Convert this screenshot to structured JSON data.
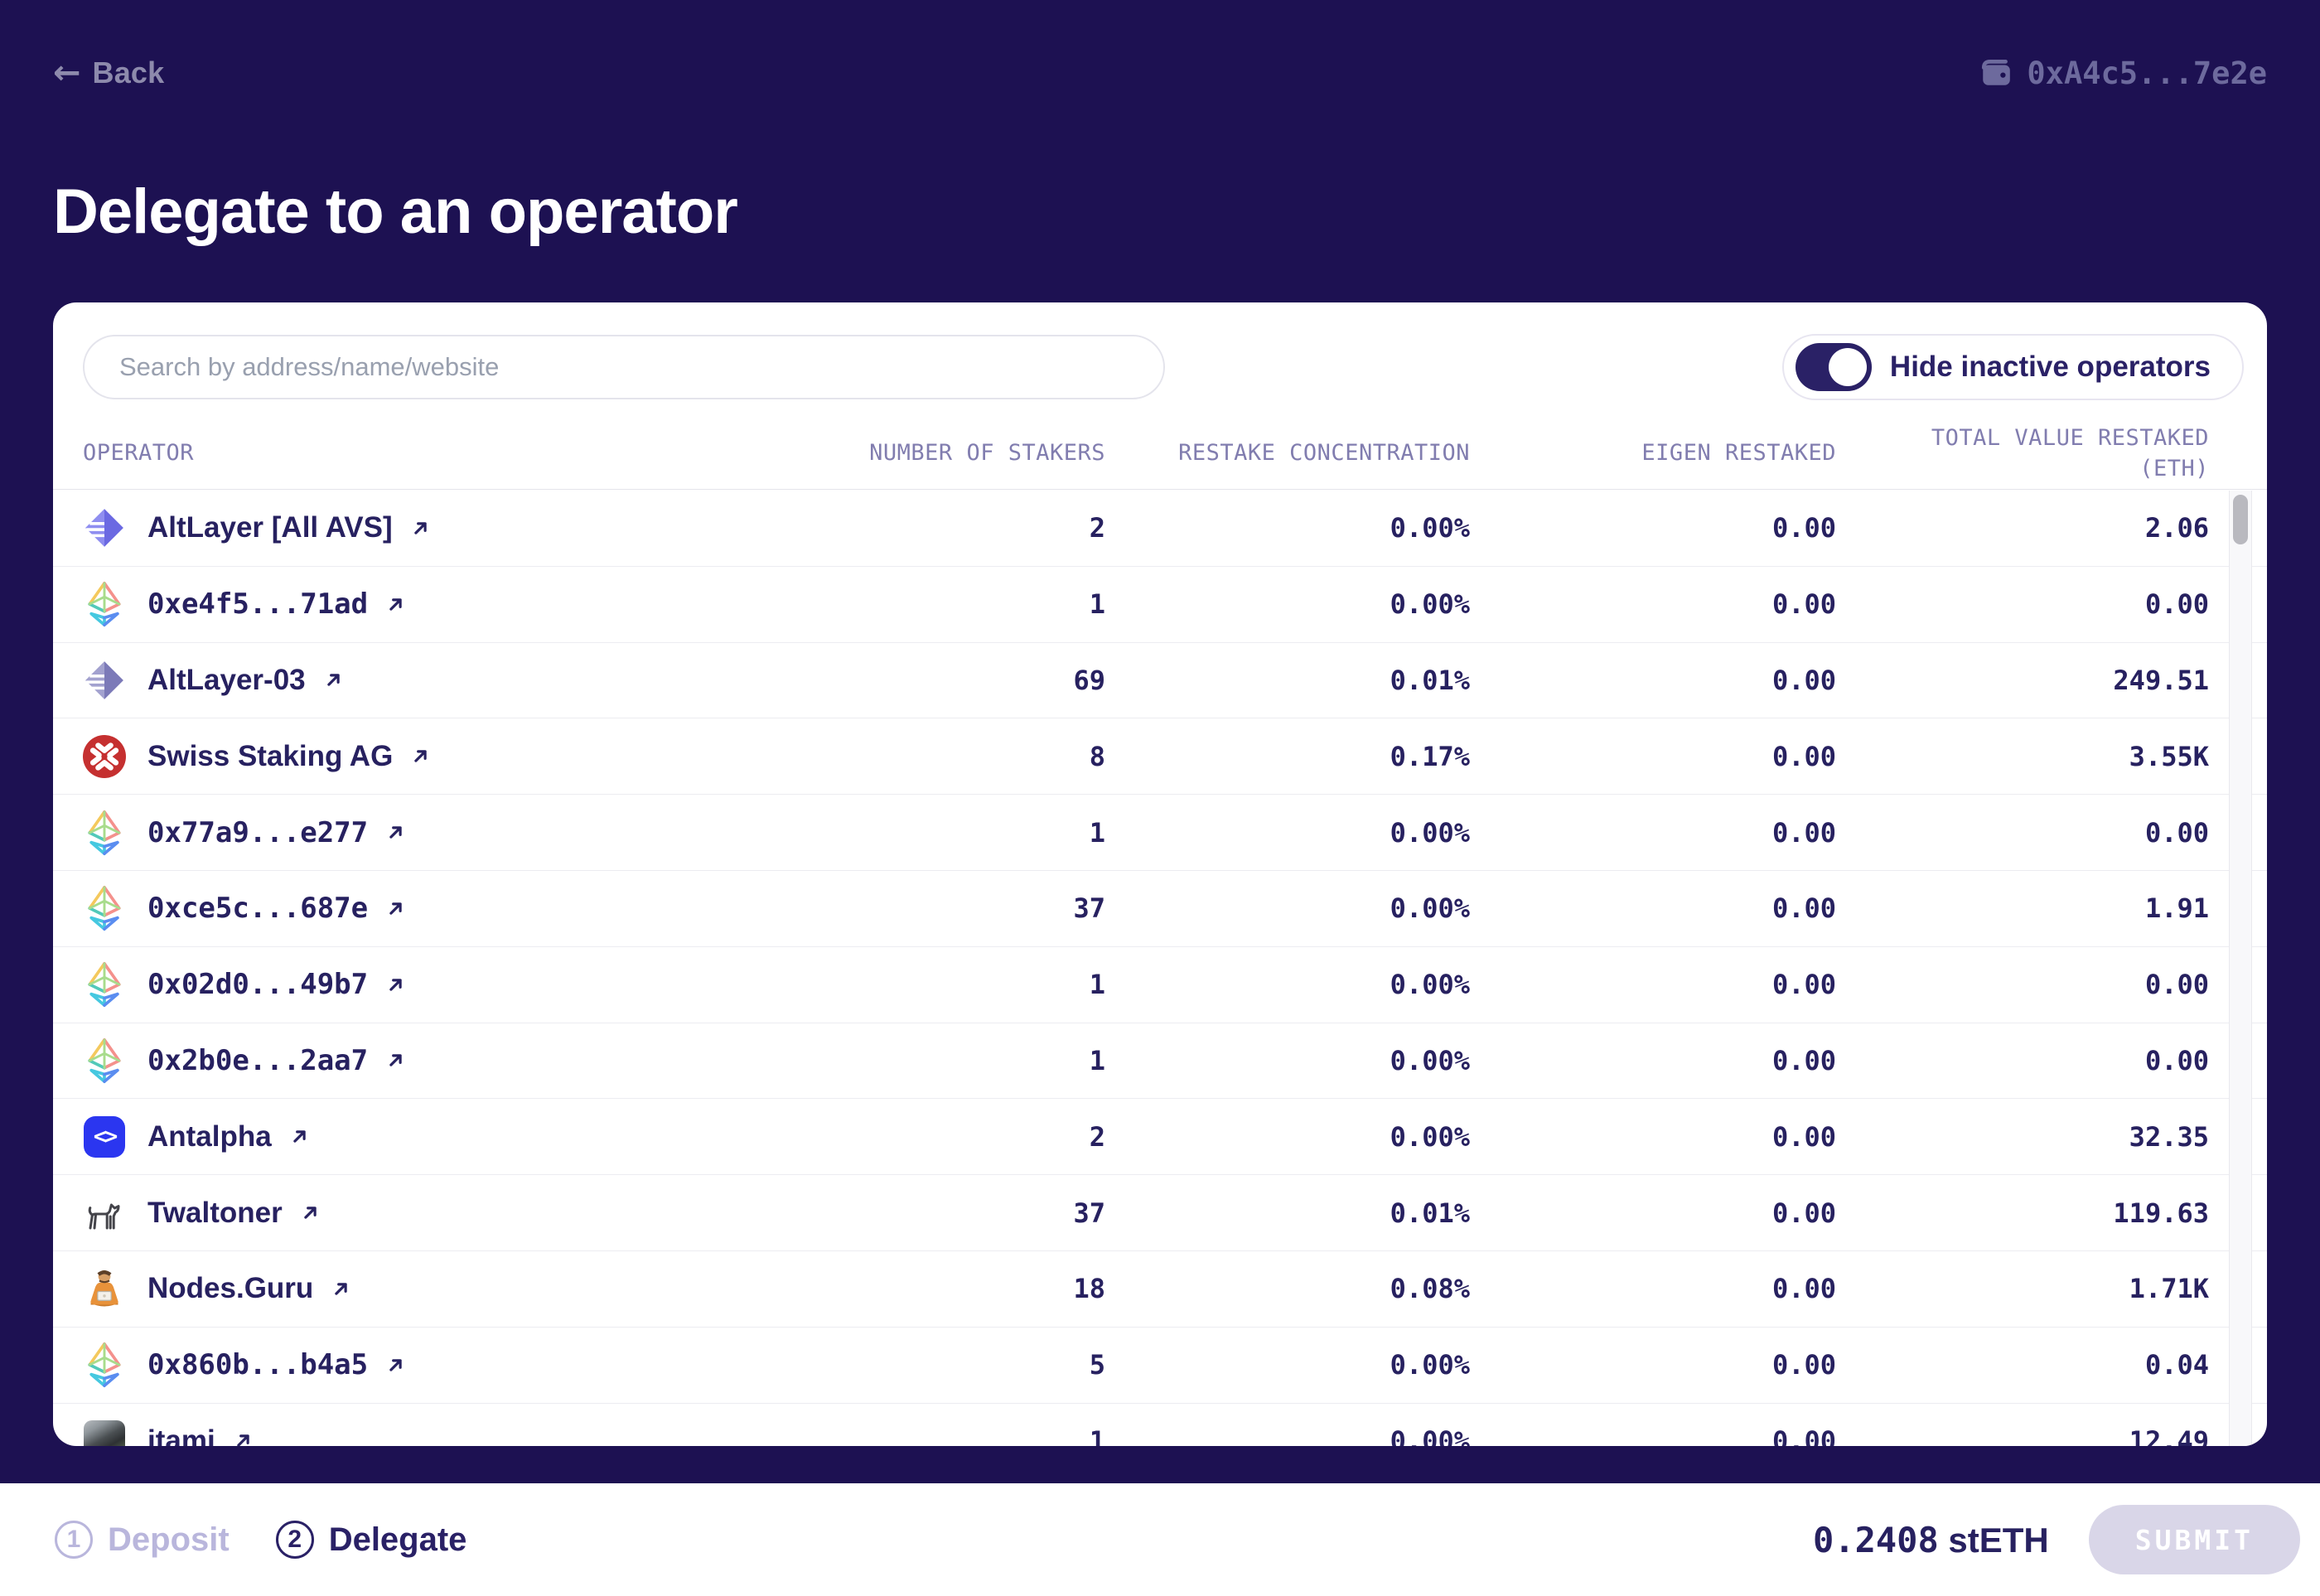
{
  "header": {
    "back_label": "Back",
    "back_icon": "back-arrow-icon",
    "wallet_icon": "wallet-icon",
    "wallet_address": "0xA4c5...7e2e"
  },
  "page_title": "Delegate to an operator",
  "panel": {
    "search_placeholder": "Search by address/name/website",
    "toggle_label": "Hide inactive operators",
    "toggle_state": "on",
    "columns": [
      "OPERATOR",
      "NUMBER OF STAKERS",
      "RESTAKE CONCENTRATION",
      "EIGEN RESTAKED",
      "TOTAL VALUE RESTAKED (ETH)"
    ],
    "rows": [
      {
        "name": "AltLayer [All AVS]",
        "icon": "altlayer-icon",
        "stakers": "2",
        "concentration": "0.00%",
        "eigen": "0.00",
        "total": "2.06"
      },
      {
        "name": "0xe4f5...71ad",
        "icon": "eth-logo-icon",
        "stakers": "1",
        "concentration": "0.00%",
        "eigen": "0.00",
        "total": "0.00"
      },
      {
        "name": "AltLayer-03",
        "icon": "altlayer-muted-icon",
        "stakers": "69",
        "concentration": "0.01%",
        "eigen": "0.00",
        "total": "249.51"
      },
      {
        "name": "Swiss Staking AG",
        "icon": "swiss-staking-icon",
        "stakers": "8",
        "concentration": "0.17%",
        "eigen": "0.00",
        "total": "3.55K"
      },
      {
        "name": "0x77a9...e277",
        "icon": "eth-logo-icon",
        "stakers": "1",
        "concentration": "0.00%",
        "eigen": "0.00",
        "total": "0.00"
      },
      {
        "name": "0xce5c...687e",
        "icon": "eth-logo-icon",
        "stakers": "37",
        "concentration": "0.00%",
        "eigen": "0.00",
        "total": "1.91"
      },
      {
        "name": "0x02d0...49b7",
        "icon": "eth-logo-icon",
        "stakers": "1",
        "concentration": "0.00%",
        "eigen": "0.00",
        "total": "0.00"
      },
      {
        "name": "0x2b0e...2aa7",
        "icon": "eth-logo-icon",
        "stakers": "1",
        "concentration": "0.00%",
        "eigen": "0.00",
        "total": "0.00"
      },
      {
        "name": "Antalpha",
        "icon": "antalpha-icon",
        "stakers": "2",
        "concentration": "0.00%",
        "eigen": "0.00",
        "total": "32.35"
      },
      {
        "name": "Twaltoner",
        "icon": "dog-icon",
        "stakers": "37",
        "concentration": "0.01%",
        "eigen": "0.00",
        "total": "119.63"
      },
      {
        "name": "Nodes.Guru",
        "icon": "guru-icon",
        "stakers": "18",
        "concentration": "0.08%",
        "eigen": "0.00",
        "total": "1.71K"
      },
      {
        "name": "0x860b...b4a5",
        "icon": "eth-logo-icon",
        "stakers": "5",
        "concentration": "0.00%",
        "eigen": "0.00",
        "total": "0.04"
      },
      {
        "name": "itami",
        "icon": "monkey-photo-icon",
        "stakers": "1",
        "concentration": "0.00%",
        "eigen": "0.00",
        "total": "12.49"
      }
    ]
  },
  "footer": {
    "steps": [
      {
        "number": "1",
        "label": "Deposit",
        "active": false
      },
      {
        "number": "2",
        "label": "Delegate",
        "active": true
      }
    ],
    "balance_amount": "0.2408",
    "balance_unit": "stETH",
    "submit_label": "SUBMIT"
  },
  "colors": {
    "background": "#1d1152",
    "card": "#ffffff",
    "accent_navy": "#2a2166",
    "header_text": "#817daf",
    "muted_lavender": "#b9b6dc",
    "submit_disabled_bg": "#d9d6e8",
    "swiss_red": "#c53030",
    "antalpha_blue": "#2b36f0",
    "altlayer_purple": "#706ee4"
  }
}
